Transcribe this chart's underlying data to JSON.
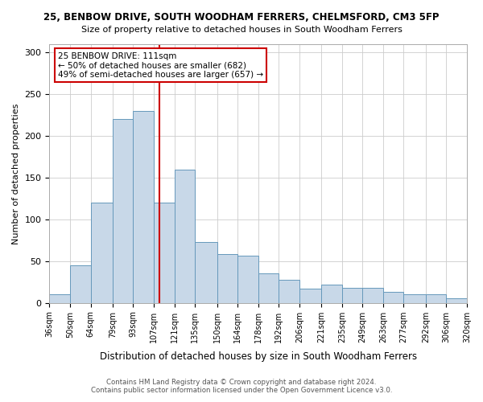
{
  "title1": "25, BENBOW DRIVE, SOUTH WOODHAM FERRERS, CHELMSFORD, CM3 5FP",
  "title2": "Size of property relative to detached houses in South Woodham Ferrers",
  "xlabel": "Distribution of detached houses by size in South Woodham Ferrers",
  "ylabel": "Number of detached properties",
  "footnote": "Contains HM Land Registry data © Crown copyright and database right 2024.\nContains public sector information licensed under the Open Government Licence v3.0.",
  "categories": [
    "36sqm",
    "50sqm",
    "64sqm",
    "79sqm",
    "93sqm",
    "107sqm",
    "121sqm",
    "135sqm",
    "150sqm",
    "164sqm",
    "178sqm",
    "192sqm",
    "206sqm",
    "221sqm",
    "235sqm",
    "249sqm",
    "263sqm",
    "277sqm",
    "292sqm",
    "306sqm",
    "320sqm"
  ],
  "values": [
    10,
    45,
    120,
    220,
    230,
    120,
    160,
    73,
    58,
    57,
    35,
    28,
    17,
    22,
    18,
    18,
    13,
    10,
    10,
    5
  ],
  "bin_edges": [
    36,
    50,
    64,
    79,
    93,
    107,
    121,
    135,
    150,
    164,
    178,
    192,
    206,
    221,
    235,
    249,
    263,
    277,
    292,
    306,
    320
  ],
  "bar_color": "#c8d8e8",
  "bar_edge_color": "#6699bb",
  "vline_x": 111,
  "vline_color": "#cc0000",
  "annotation_text": "25 BENBOW DRIVE: 111sqm\n← 50% of detached houses are smaller (682)\n49% of semi-detached houses are larger (657) →",
  "annotation_box_color": "#ffffff",
  "annotation_box_edge_color": "#cc0000",
  "ylim": [
    0,
    310
  ],
  "yticks": [
    0,
    50,
    100,
    150,
    200,
    250,
    300
  ],
  "property_sqm": 111
}
